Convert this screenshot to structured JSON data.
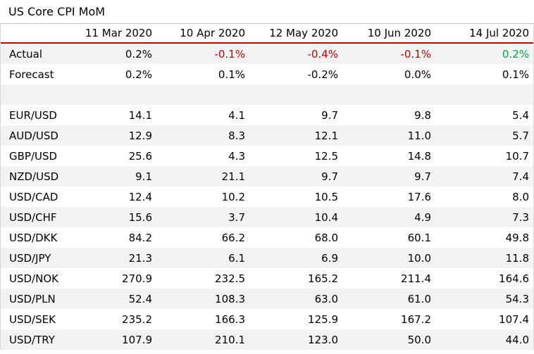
{
  "title": "US Core CPI MoM",
  "columns": [
    "11 Mar 2020",
    "10 Apr 2020",
    "12 May 2020",
    "10 Jun 2020",
    "14 Jul 2020"
  ],
  "colors": {
    "negative": "#c00000",
    "positive": "#00a050",
    "header_rule": "#c00000",
    "row_shade": "#f2f2f2"
  },
  "actual": {
    "label": "Actual",
    "values": [
      "0.2%",
      "-0.1%",
      "-0.4%",
      "-0.1%",
      "0.2%"
    ]
  },
  "forecast": {
    "label": "Forecast",
    "values": [
      "0.2%",
      "0.1%",
      "-0.2%",
      "0.0%",
      "0.1%"
    ]
  },
  "pairs": [
    {
      "pair": "EUR/USD",
      "values": [
        "14.1",
        "4.1",
        "9.7",
        "9.8",
        "5.4"
      ]
    },
    {
      "pair": "AUD/USD",
      "values": [
        "12.9",
        "8.3",
        "12.1",
        "11.0",
        "5.7"
      ]
    },
    {
      "pair": "GBP/USD",
      "values": [
        "25.6",
        "4.3",
        "12.5",
        "14.8",
        "10.7"
      ]
    },
    {
      "pair": "NZD/USD",
      "values": [
        "9.1",
        "21.1",
        "9.7",
        "9.7",
        "7.4"
      ]
    },
    {
      "pair": "USD/CAD",
      "values": [
        "12.4",
        "10.2",
        "10.5",
        "17.6",
        "8.0"
      ]
    },
    {
      "pair": "USD/CHF",
      "values": [
        "15.6",
        "3.7",
        "10.4",
        "4.9",
        "7.3"
      ]
    },
    {
      "pair": "USD/DKK",
      "values": [
        "84.2",
        "66.2",
        "68.0",
        "60.1",
        "49.8"
      ]
    },
    {
      "pair": "USD/JPY",
      "values": [
        "21.3",
        "6.1",
        "6.9",
        "10.0",
        "11.8"
      ]
    },
    {
      "pair": "USD/NOK",
      "values": [
        "270.9",
        "232.5",
        "165.2",
        "211.4",
        "164.6"
      ]
    },
    {
      "pair": "USD/PLN",
      "values": [
        "52.4",
        "108.3",
        "63.0",
        "61.0",
        "54.3"
      ]
    },
    {
      "pair": "USD/SEK",
      "values": [
        "235.2",
        "166.3",
        "125.9",
        "167.2",
        "107.4"
      ]
    },
    {
      "pair": "USD/TRY",
      "values": [
        "107.9",
        "210.1",
        "123.0",
        "50.0",
        "44.0"
      ]
    }
  ]
}
